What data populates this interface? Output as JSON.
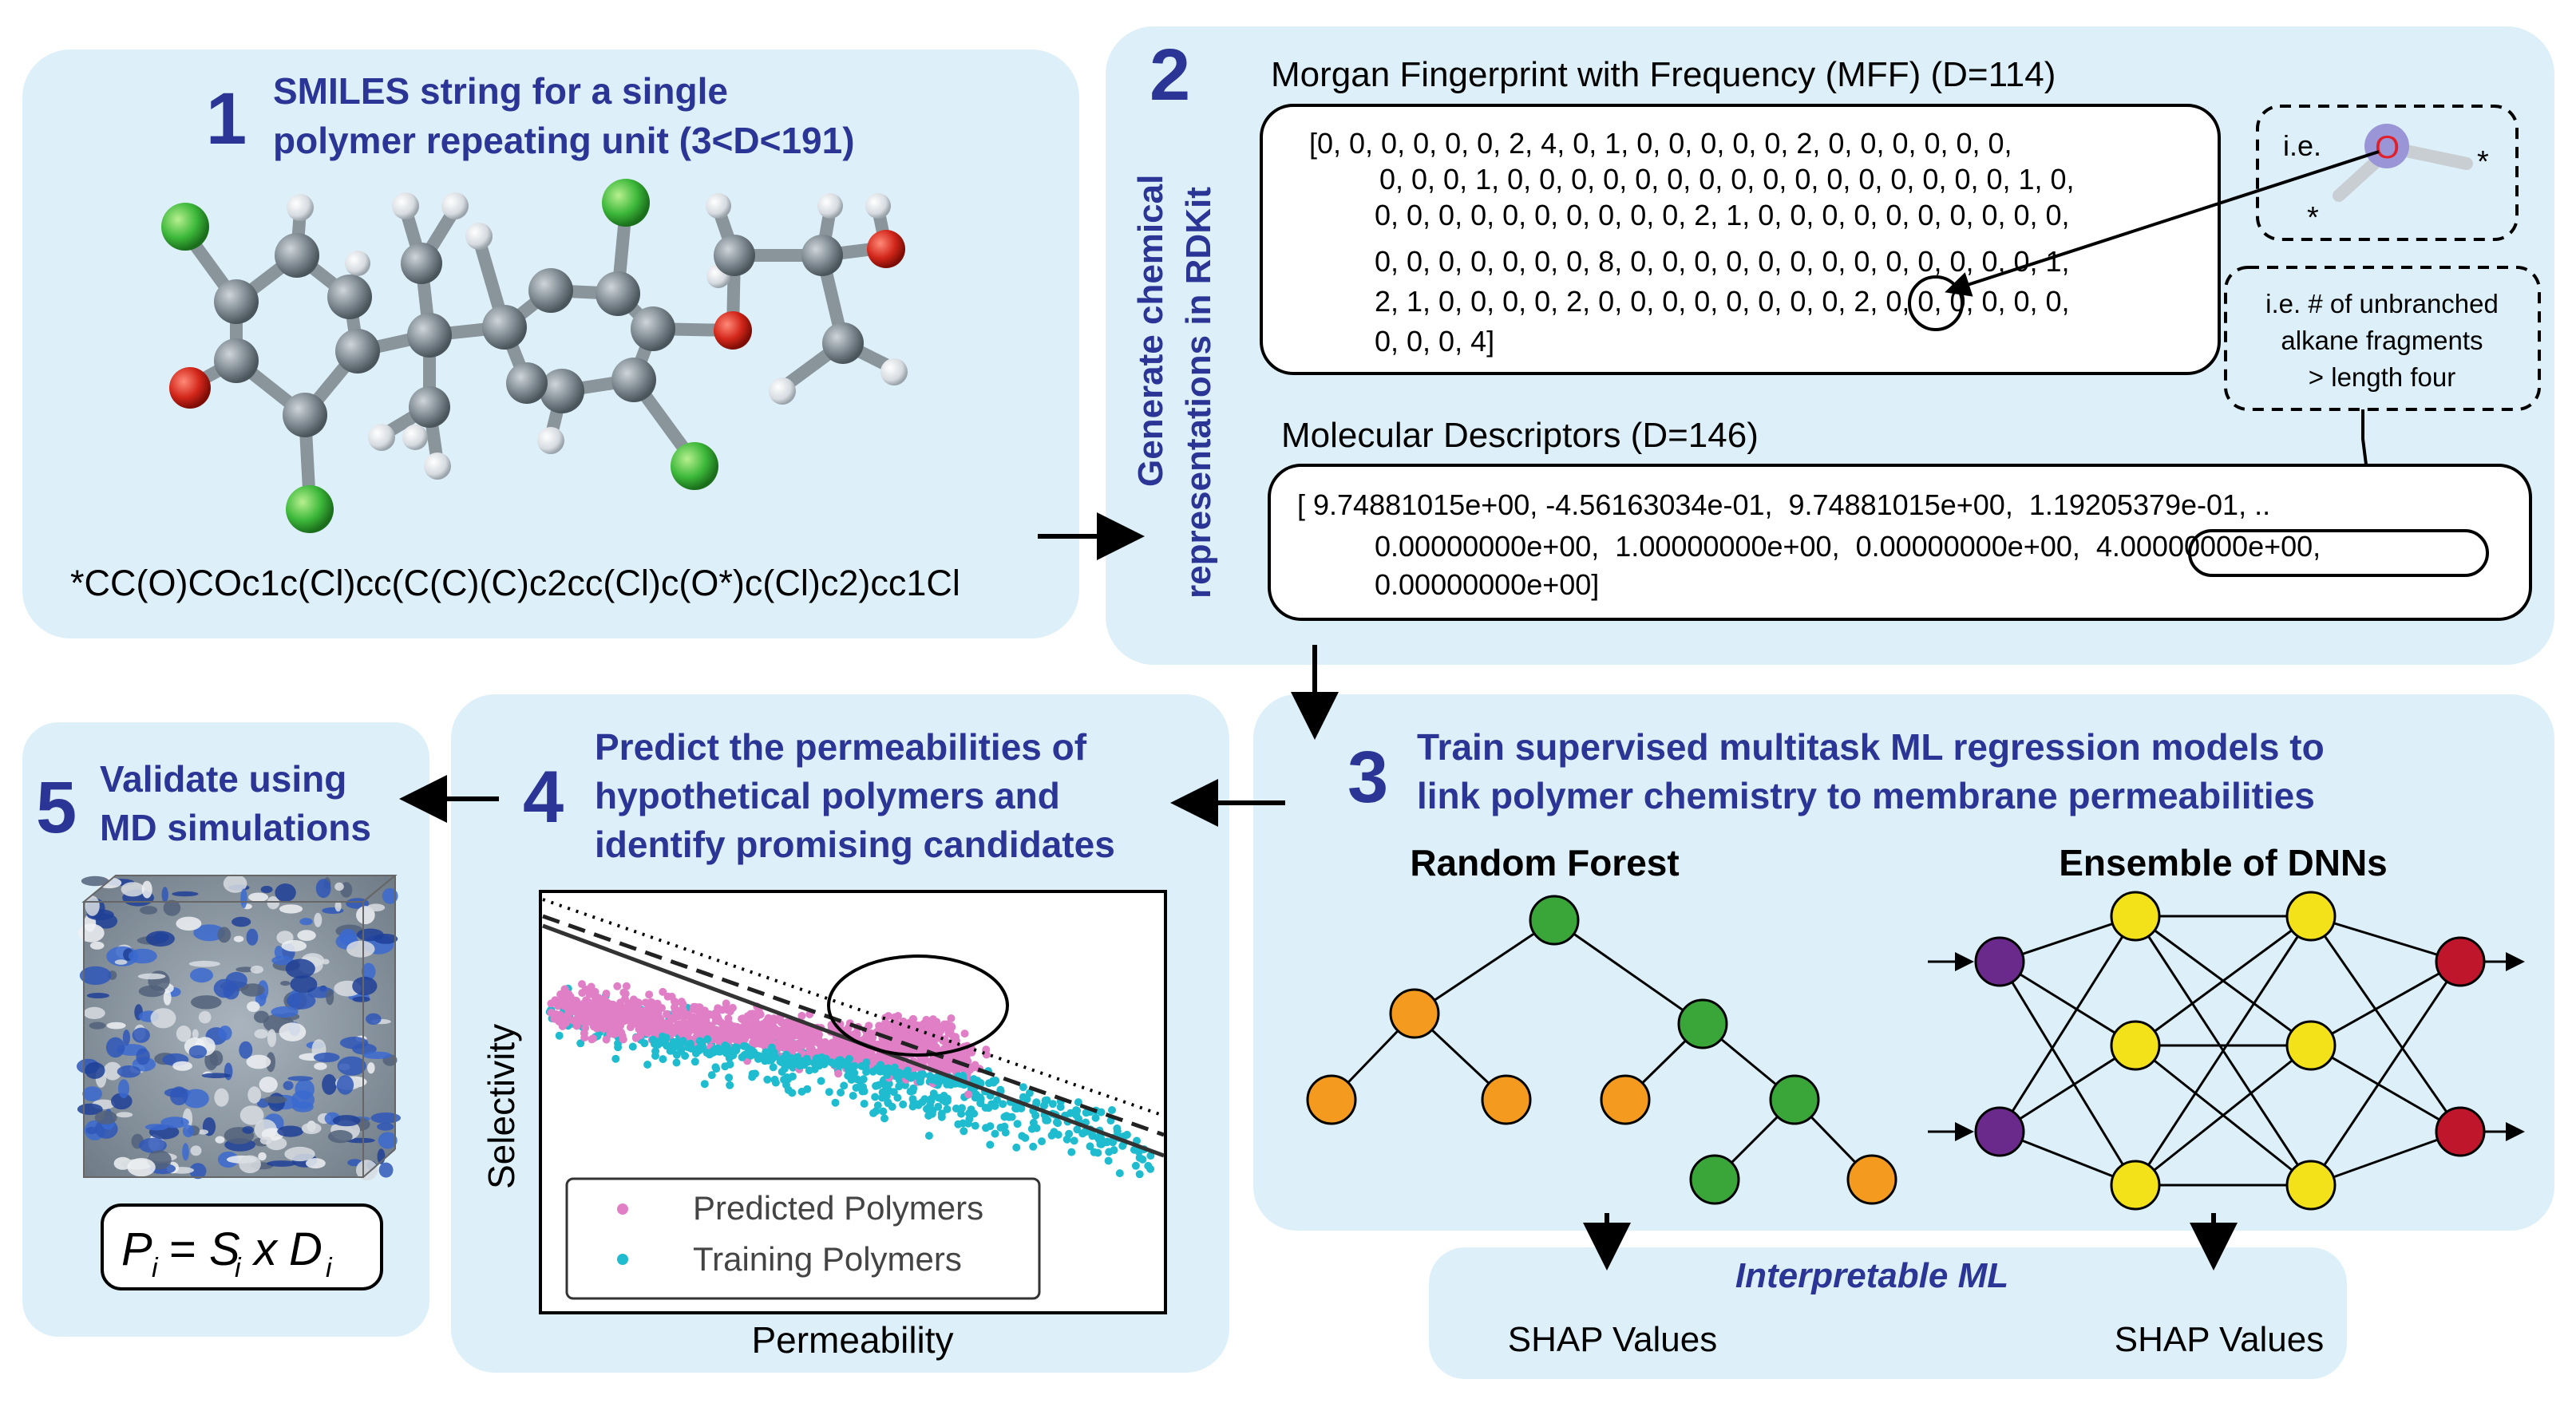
{
  "colors": {
    "panel_bg": "#ddf0f9",
    "title_blue": "#2b3595",
    "rf_green": "#3aa63a",
    "rf_orange": "#f39a1f",
    "dnn_purple": "#6a2a8c",
    "dnn_yellow": "#f3e21a",
    "dnn_red": "#c0162c",
    "predicted_pink": "#e07fc6",
    "training_cyan": "#1fbccf"
  },
  "panel1": {
    "number": "1",
    "title_line1": "SMILES string for a single",
    "title_line2": "polymer repeating unit (3<D<191)",
    "smiles": "*CC(O)COc1c(Cl)cc(C(C)(C)c2cc(Cl)c(O*)c(Cl)c2)cc1Cl"
  },
  "panel2": {
    "number": "2",
    "side_line1": "Generate chemical",
    "side_line2": "representations in RDKit",
    "mff_title": "Morgan Fingerprint with Frequency (MFF) (D=114)",
    "mff_lines": [
      "[0, 0, 0, 0, 0, 0, 2, 4, 0, 1, 0, 0, 0, 0, 0, 2, 0, 0, 0, 0, 0, 0,",
      "0, 0, 0, 1, 0, 0, 0, 0, 0, 0, 0, 0, 0, 0, 0, 0, 0, 0, 0, 0, 1, 0,",
      "0, 0, 0, 0, 0, 0, 0, 0, 0, 0, 2, 1, 0, 0, 0, 0, 0, 0, 0, 0, 0, 0,",
      "0, 0, 0, 0, 0, 0, 0, 8, 0, 0, 0, 0, 0, 0, 0, 0, 0, 0, 0, 0, 0, 1,",
      "2, 1, 0, 0, 0, 0, 2, 0, 0, 0, 0, 0, 0, 0, 0, 2, 0, 0, 0, 0, 0, 0,",
      "0, 0, 0, 4]"
    ],
    "ie_label": "i.e.",
    "ie_atom": "O",
    "ie_star": "*",
    "ie_note_line1": "i.e. # of unbranched",
    "ie_note_line2": "alkane fragments",
    "ie_note_line3": "> length four",
    "md_title": "Molecular Descriptors (D=146)",
    "md_lines": [
      "[ 9.74881015e+00, -4.56163034e-01,  9.74881015e+00,  1.19205379e-01, ..",
      "0.00000000e+00,  1.00000000e+00,  0.00000000e+00,  4.00000000e+00,",
      "0.00000000e+00]"
    ]
  },
  "panel3": {
    "number": "3",
    "title_line1": "Train supervised multitask ML regression models to",
    "title_line2": "link polymer chemistry to membrane permeabilities",
    "rf_title": "Random Forest",
    "dnn_title": "Ensemble of DNNs"
  },
  "interpretable": {
    "title": "Interpretable ML",
    "shap_left": "SHAP Values",
    "shap_right": "SHAP Values"
  },
  "panel4": {
    "number": "4",
    "title_line1": "Predict the permeabilities of",
    "title_line2": "hypothetical polymers and",
    "title_line3": "identify promising candidates"
  },
  "chart_data": {
    "type": "scatter",
    "title": "",
    "xlabel": "Permeability",
    "ylabel": "Selectivity",
    "grid": false,
    "legend_position": "bottom-left",
    "x_tick_labels": [],
    "y_tick_labels": [],
    "series": [
      {
        "name": "Predicted Polymers",
        "color": "#e07fc6"
      },
      {
        "name": "Training Polymers",
        "color": "#1fbccf"
      }
    ],
    "upper_bound_lines": [
      "solid",
      "dashed",
      "dotted"
    ],
    "annotation": "ellipse around high-permeability predicted polymers near the upper bound"
  },
  "panel5": {
    "number": "5",
    "title_line1": "Validate using",
    "title_line2": "MD simulations",
    "eq_P": "P",
    "eq_S": "S",
    "eq_D": "D",
    "eq_i": "i",
    "eq_eq": "=",
    "eq_x": "x"
  }
}
